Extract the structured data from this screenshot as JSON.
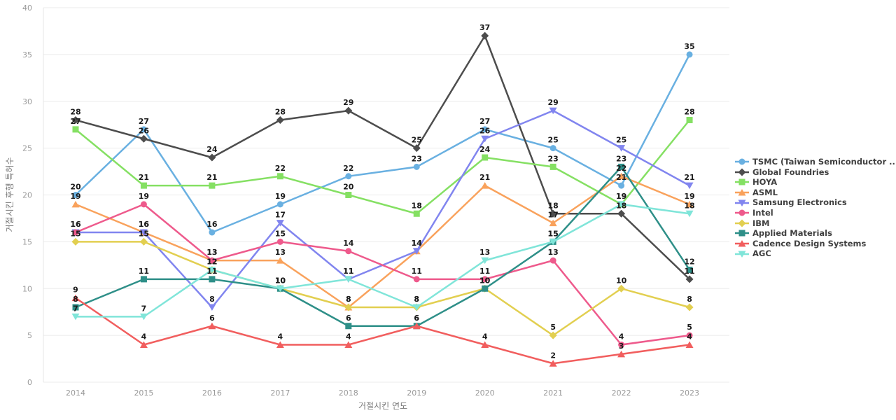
{
  "chart": {
    "y_axis_label": "거절시킨 후행 특허수",
    "x_axis_label": "거절시킨 연도"
  },
  "chart_data": {
    "type": "line",
    "title": "",
    "xlabel": "거절시킨 연도",
    "ylabel": "거절시킨 후행 특허수",
    "categories": [
      "2014",
      "2015",
      "2016",
      "2017",
      "2018",
      "2019",
      "2020",
      "2021",
      "2022",
      "2023"
    ],
    "yticks": [
      0,
      5,
      10,
      15,
      20,
      25,
      30,
      35,
      40
    ],
    "ylim": [
      0,
      40
    ],
    "grid": "horizontal",
    "legend_position": "right",
    "data_labels": true,
    "series": [
      {
        "name": "TSMC (Taiwan Semiconductor ...",
        "color": "#69b0e1",
        "marker": "circle",
        "values": [
          20,
          27,
          16,
          19,
          22,
          23,
          27,
          25,
          21,
          35
        ]
      },
      {
        "name": "Global Foundries",
        "color": "#4d4d4d",
        "marker": "diamond",
        "values": [
          28,
          26,
          24,
          28,
          29,
          25,
          37,
          18,
          18,
          11
        ]
      },
      {
        "name": "HOYA",
        "color": "#85e063",
        "marker": "square",
        "values": [
          27,
          21,
          21,
          22,
          20,
          18,
          24,
          23,
          19,
          28
        ]
      },
      {
        "name": "ASML",
        "color": "#f9a25c",
        "marker": "triangle-up",
        "values": [
          19,
          16,
          13,
          13,
          8,
          14,
          21,
          17,
          22,
          19
        ]
      },
      {
        "name": "Samsung Electronics",
        "color": "#8185ef",
        "marker": "triangle-down",
        "values": [
          16,
          16,
          8,
          17,
          11,
          14,
          26,
          29,
          25,
          21
        ]
      },
      {
        "name": "Intel",
        "color": "#ee5a8c",
        "marker": "circle",
        "values": [
          16,
          19,
          13,
          15,
          14,
          11,
          11,
          13,
          4,
          5
        ]
      },
      {
        "name": "IBM",
        "color": "#e2cf50",
        "marker": "diamond",
        "values": [
          15,
          15,
          12,
          10,
          8,
          8,
          10,
          5,
          10,
          8
        ]
      },
      {
        "name": "Applied Materials",
        "color": "#2e8f88",
        "marker": "square",
        "values": [
          8,
          11,
          11,
          10,
          6,
          6,
          10,
          15,
          23,
          12
        ]
      },
      {
        "name": "Cadence Design Systems",
        "color": "#f15e5e",
        "marker": "triangle-up",
        "values": [
          9,
          4,
          6,
          4,
          4,
          6,
          4,
          2,
          3,
          4
        ]
      },
      {
        "name": "AGC",
        "color": "#80e5d9",
        "marker": "triangle-down",
        "values": [
          7,
          7,
          12,
          10,
          11,
          8,
          13,
          15,
          19,
          18
        ]
      }
    ]
  }
}
